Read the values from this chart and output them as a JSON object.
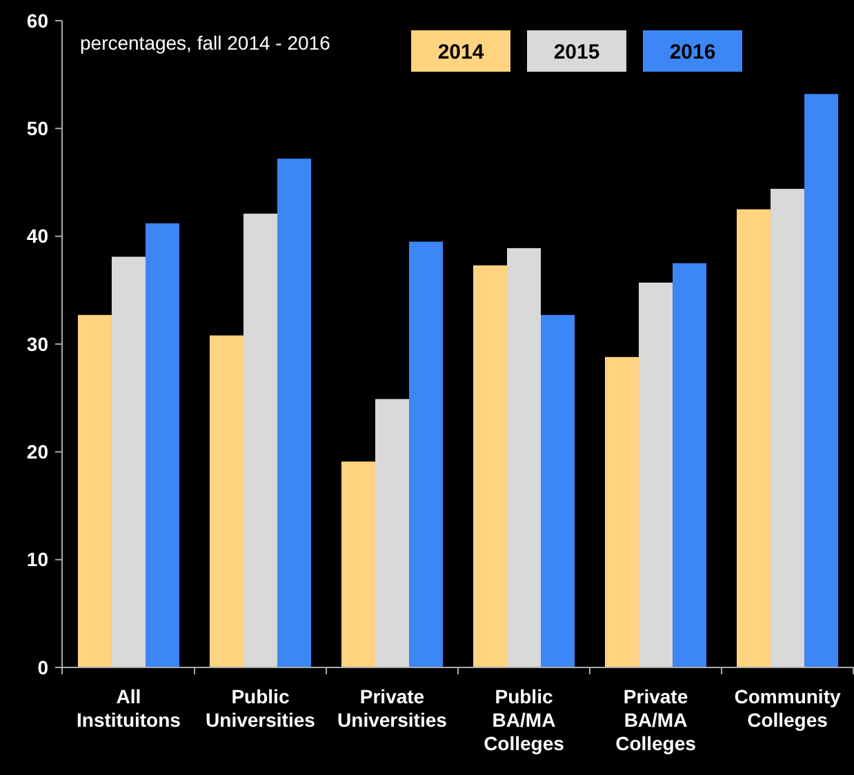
{
  "chart_data": {
    "type": "bar",
    "categories": [
      "All\nInstituitons",
      "Public\nUniversities",
      "Private\nUniversities",
      "Public\nBA/MA\nColleges",
      "Private\nBA/MA\nColleges",
      "Community\nColleges"
    ],
    "series": [
      {
        "name": "2014",
        "color": "#ffd37f",
        "values": [
          32.7,
          30.8,
          19.1,
          37.3,
          28.8,
          42.5
        ]
      },
      {
        "name": "2015",
        "color": "#d9d9d9",
        "values": [
          38.1,
          42.1,
          24.9,
          38.9,
          35.7,
          44.4
        ]
      },
      {
        "name": "2016",
        "color": "#3d86f5",
        "values": [
          41.2,
          47.2,
          39.5,
          32.7,
          37.5,
          53.2
        ]
      }
    ],
    "ylim": [
      0,
      60
    ],
    "yticks": [
      0,
      10,
      20,
      30,
      40,
      50,
      60
    ],
    "grid": false,
    "legend": "top right",
    "annotations": [
      "percentages, fall 2014 - 2016"
    ]
  }
}
